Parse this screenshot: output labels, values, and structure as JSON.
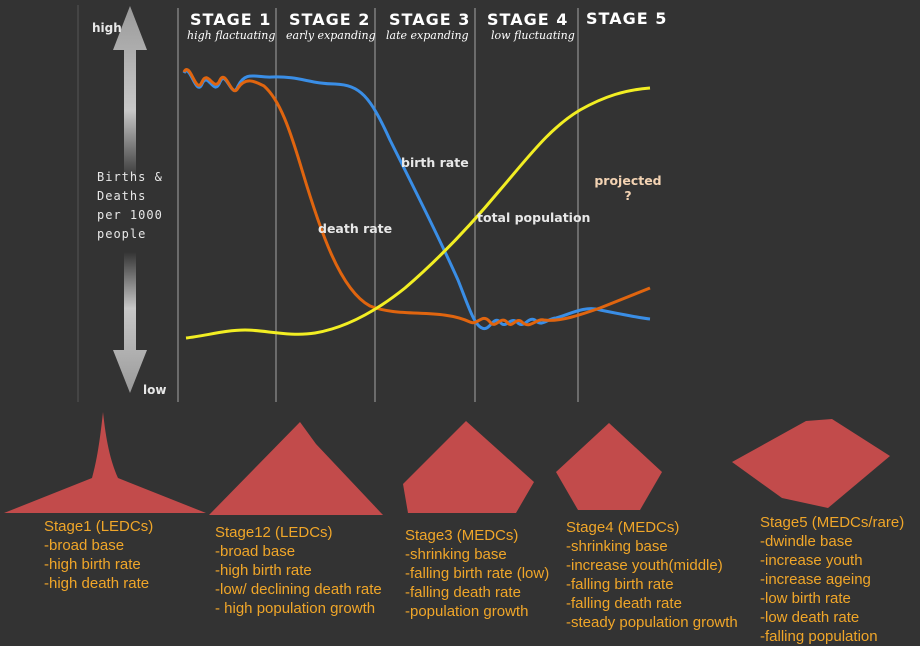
{
  "stages": [
    {
      "title": "STAGE  1",
      "subtitle": "high flactuating"
    },
    {
      "title": "STAGE  2",
      "subtitle": "early expanding"
    },
    {
      "title": "STAGE  3",
      "subtitle": "late expanding"
    },
    {
      "title": "STAGE  4",
      "subtitle": "low fluctuating"
    },
    {
      "title": "STAGE  5",
      "subtitle": ""
    }
  ],
  "axis": {
    "high": "high",
    "low": "low",
    "ylabel_lines": [
      "Births  &",
      "Deaths",
      "per 1000",
      "people"
    ]
  },
  "curves": {
    "birth_rate": "birth rate",
    "death_rate": "death rate",
    "total_population": "total population",
    "projected": "projected",
    "projected_mark": "?"
  },
  "colors": {
    "birth_rate": "#3a8ee6",
    "death_rate": "#e0650f",
    "total_population": "#f2ee23",
    "pyramid": "#c24b4b",
    "description_text": "#f0a629",
    "background": "#333333"
  },
  "descriptions": [
    {
      "title": "Stage1 (LEDCs)",
      "points": [
        "-broad base",
        "-high birth rate",
        "-high death rate"
      ]
    },
    {
      "title": "Stage12 (LEDCs)",
      "points": [
        "-broad base",
        "-high birth rate",
        "-low/ declining death rate",
        "- high population growth"
      ]
    },
    {
      "title": "Stage3 (MEDCs)",
      "points": [
        "-shrinking base",
        "-falling birth rate (low)",
        "-falling death rate",
        "-population growth"
      ]
    },
    {
      "title": "Stage4 (MEDCs)",
      "points": [
        "-shrinking base",
        "-increase youth(middle)",
        "-falling birth rate",
        "-falling death rate",
        "-steady population growth"
      ]
    },
    {
      "title": "Stage5 (MEDCs/rare)",
      "points": [
        "-dwindle base",
        "-increase youth",
        "-increase ageing",
        "-low birth rate",
        "-low death rate",
        "-falling population"
      ]
    }
  ]
}
